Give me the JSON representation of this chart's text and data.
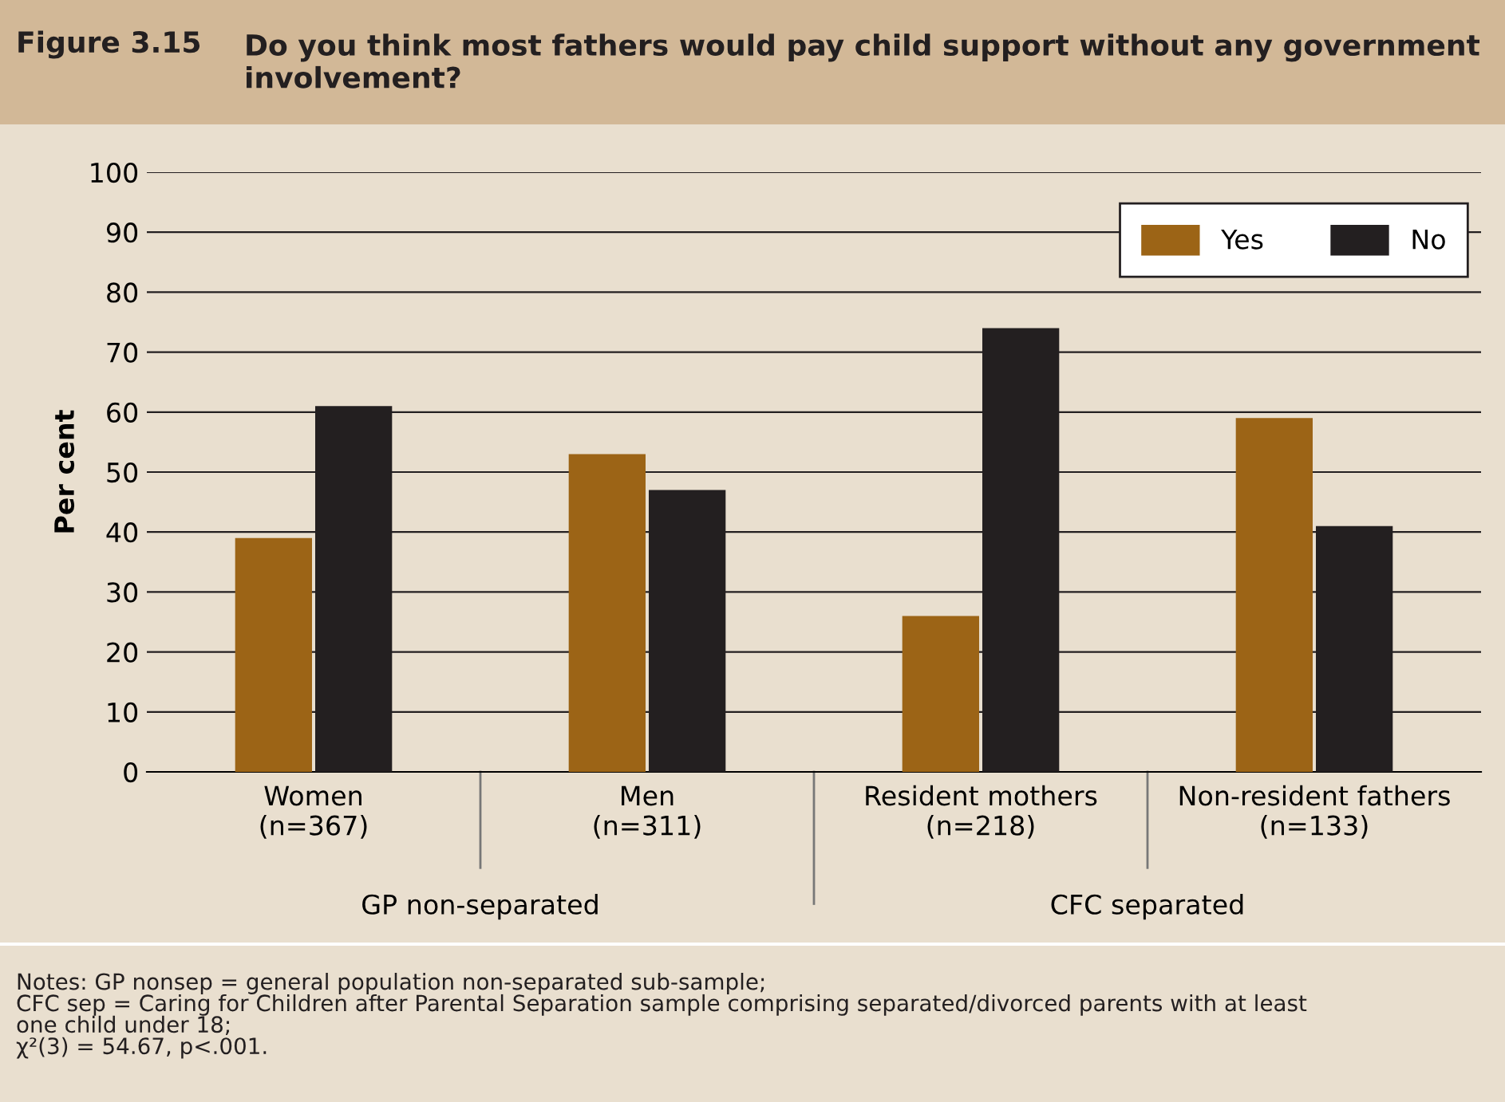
{
  "chart_data": {
    "type": "bar",
    "title": "Figure 3.15",
    "subtitle": "Do you think most fathers would pay child support without any government involvement?",
    "ylabel": "Per cent",
    "categories": [
      "Women\n(n=367)",
      "Men\n(n=311)",
      "Resident mothers\n(n=218)",
      "Non-resident fathers\n(n=133)"
    ],
    "series": [
      {
        "name": "Yes",
        "color": "#9c6416",
        "values": [
          39,
          53,
          26,
          59
        ]
      },
      {
        "name": "No",
        "color": "#231f20",
        "values": [
          61,
          47,
          74,
          41
        ]
      }
    ],
    "ylim": [
      0,
      100
    ],
    "yticks": [
      0,
      10,
      20,
      30,
      40,
      50,
      60,
      70,
      80,
      90,
      100
    ],
    "grid": "y",
    "legend": "top right",
    "annotations": [
      "GP non-separated",
      "CFC separated",
      "Notes: GP nonsep = general population non-separated sub-sample;\nCFC sep = Caring for Children after Parental Separation sample comprising separated/divorced parents with at least\none child under 18;\nχ²(3) = 54.67, p<.001."
    ]
  }
}
